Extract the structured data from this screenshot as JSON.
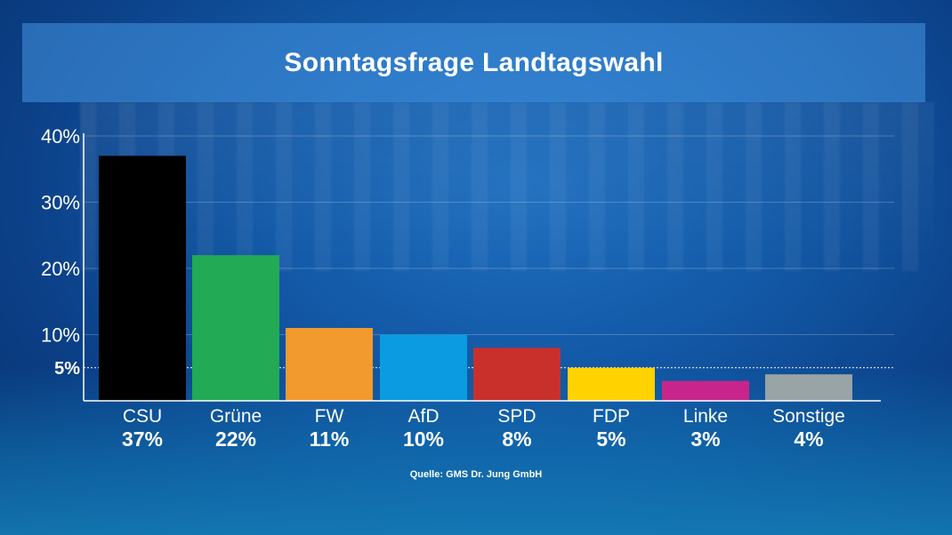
{
  "chart_data": {
    "type": "bar",
    "title": "Sonntagsfrage Landtagswahl",
    "categories": [
      "CSU",
      "Grüne",
      "FW",
      "AfD",
      "SPD",
      "FDP",
      "Linke",
      "Sonstige"
    ],
    "values": [
      37,
      22,
      11,
      10,
      8,
      5,
      3,
      4
    ],
    "value_labels": [
      "37%",
      "22%",
      "11%",
      "10%",
      "8%",
      "5%",
      "3%",
      "4%"
    ],
    "colors": [
      "#000000",
      "#22aa55",
      "#f29a2e",
      "#0a9be0",
      "#c9302c",
      "#ffd200",
      "#c8258c",
      "#98a4a6"
    ],
    "yticks": [
      {
        "value": 10,
        "label": "10%"
      },
      {
        "value": 20,
        "label": "20%"
      },
      {
        "value": 30,
        "label": "30%"
      },
      {
        "value": 40,
        "label": "40%"
      }
    ],
    "threshold": {
      "value": 5,
      "label": "5%"
    },
    "ylim": [
      0,
      40
    ],
    "grid": true,
    "source": "Quelle: GMS Dr. Jung GmbH"
  }
}
